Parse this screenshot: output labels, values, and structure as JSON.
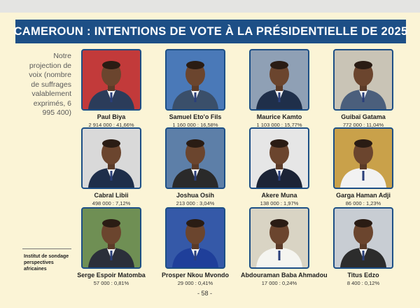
{
  "title": "CAMEROUN : INTENTIONS DE VOTE À LA PRÉSIDENTIELLE DE 2025",
  "side_note": "Notre projection de voix (nombre de suffrages valablement exprimés, 6 995 400)",
  "institute": "Institut de sondage perspectives africaines",
  "page_number": "- 58 -",
  "candidates": [
    {
      "name": "Paul Biya",
      "votes": "2 914 000 : 41,66%",
      "bg": "#c23a3a",
      "suit": "#2b3c5a"
    },
    {
      "name": "Samuel Eto'o Fils",
      "votes": "1 160 000 : 16,58%",
      "bg": "#4a79b8",
      "suit": "#3a4f6a"
    },
    {
      "name": "Maurice Kamto",
      "votes": "1 103 000 : 15,77%",
      "bg": "#8fa0b5",
      "suit": "#1f2f4a"
    },
    {
      "name": "Guibaï Gatama",
      "votes": "772 000 : 11,04%",
      "bg": "#c9c4b6",
      "suit": "#4b5f7c"
    },
    {
      "name": "Cabral Libii",
      "votes": "498 000 : 7,12%",
      "bg": "#d9d9d9",
      "suit": "#1e2e4a"
    },
    {
      "name": "Joshua Osih",
      "votes": "213 000 : 3,04%",
      "bg": "#5d7fa8",
      "suit": "#2a2a2a"
    },
    {
      "name": "Akere Muna",
      "votes": "138 000 : 1,97%",
      "bg": "#e6e6e6",
      "suit": "#1c2436"
    },
    {
      "name": "Garga Haman Adji",
      "votes": "86 000 : 1,23%",
      "bg": "#c9a14a",
      "suit": "#f2f2f2"
    },
    {
      "name": "Serge Espoir Matomba",
      "votes": "57 000 : 0,81%",
      "bg": "#6f8f54",
      "suit": "#2b2f3a"
    },
    {
      "name": "Prosper Nkou Mvondo",
      "votes": "29 000 : 0,41%",
      "bg": "#3559a8",
      "suit": "#1f3f9a"
    },
    {
      "name": "Abdouraman Baba Ahmadou",
      "votes": "17 000 : 0,24%",
      "bg": "#d9d4c4",
      "suit": "#f5f5f0"
    },
    {
      "name": "Titus Edzo",
      "votes": "8 400 : 0,12%",
      "bg": "#c8cdd3",
      "suit": "#2c2c2c"
    }
  ]
}
